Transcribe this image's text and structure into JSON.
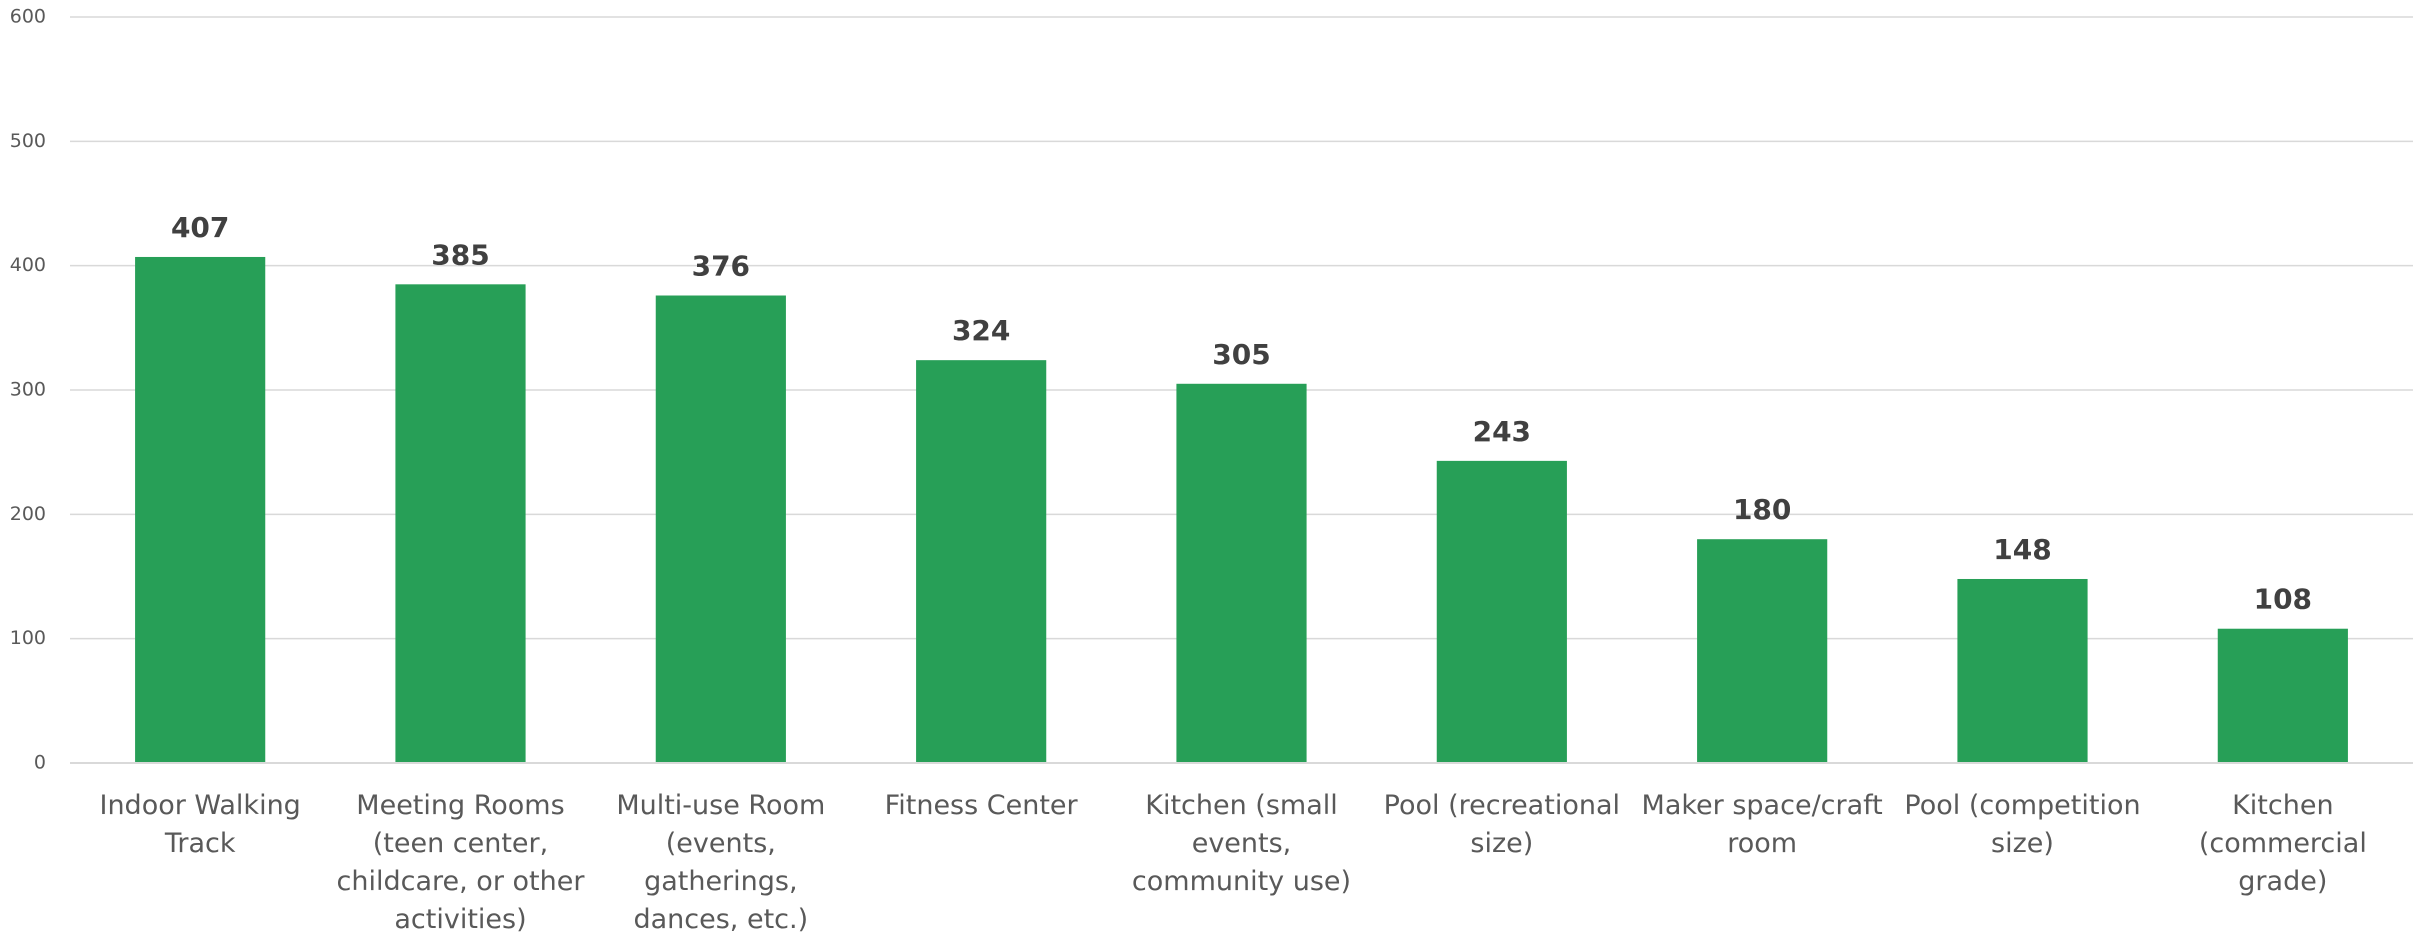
{
  "chart_data": {
    "type": "bar",
    "categories": [
      "Indoor Walking Track",
      "Meeting Rooms (teen center, childcare, or other activities)",
      "Multi-use Room (events, gatherings, dances, etc.)",
      "Fitness Center",
      "Kitchen (small events, community use)",
      "Pool (recreational size)",
      "Maker space/craft room",
      "Pool (competition size)",
      "Kitchen (commercial grade)"
    ],
    "values": [
      407,
      385,
      376,
      324,
      305,
      243,
      180,
      148,
      108
    ],
    "color": "#279f57",
    "ylim": [
      0,
      600
    ],
    "yticks": [
      0,
      100,
      200,
      300,
      400,
      500,
      600
    ],
    "grid": true
  }
}
